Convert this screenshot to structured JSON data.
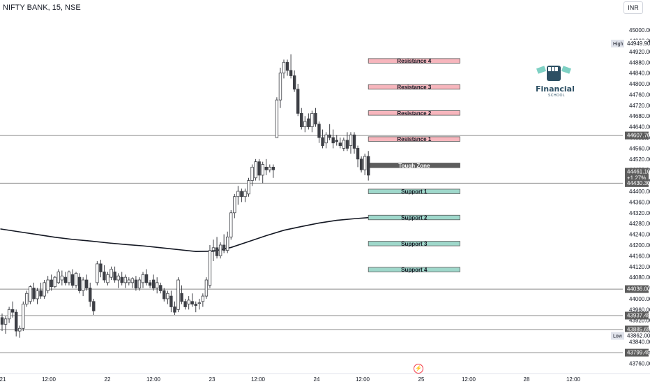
{
  "header": {
    "symbol": "NIFTY BANK, 15, NSE",
    "currency": "INR"
  },
  "logo": {
    "word": "Financial",
    "sub": "SCHOOL",
    "icon": "raised-fist-money-icon"
  },
  "colors": {
    "up_candle": "#ffffff",
    "down_candle": "#3d3f45",
    "resistance": "#f7b6bd",
    "support": "#9fd8cb",
    "tough_zone": "#5d5d5d",
    "ma_line": "#131722",
    "level_line": "#8a8a8a",
    "price_label": "#5d5d5d",
    "event_icon": "#f23645"
  },
  "chart_data": {
    "type": "candlestick",
    "symbol": "NIFTY BANK",
    "interval": "15",
    "exchange": "NSE",
    "ylim": [
      43740,
      45060
    ],
    "y_ticks": [
      45000,
      44960,
      44920,
      44880,
      44840,
      44800,
      44760,
      44720,
      44680,
      44640,
      44600,
      44560,
      44520,
      44480,
      44440,
      44400,
      44360,
      44320,
      44280,
      44240,
      44200,
      44160,
      44120,
      44080,
      44040,
      44000,
      43960,
      43920,
      43880,
      43840,
      43800,
      43760
    ],
    "x_tick_labels": [
      "21",
      "12:00",
      "22",
      "12:00",
      "23",
      "12:00",
      "24",
      "12:00",
      "25",
      "12:00",
      "28",
      "12:00"
    ],
    "candles_ohlc": [
      [
        43930,
        43945,
        43880,
        43905
      ],
      [
        43905,
        43935,
        43870,
        43925
      ],
      [
        43925,
        43970,
        43910,
        43960
      ],
      [
        43960,
        43990,
        43930,
        43950
      ],
      [
        43950,
        43960,
        43860,
        43880
      ],
      [
        43880,
        43900,
        43855,
        43890
      ],
      [
        43890,
        43990,
        43880,
        43980
      ],
      [
        43980,
        44030,
        43970,
        44020
      ],
      [
        43990,
        44050,
        43980,
        44045
      ],
      [
        44040,
        44060,
        43990,
        44000
      ],
      [
        44000,
        44040,
        43980,
        44030
      ],
      [
        44030,
        44060,
        44000,
        44010
      ],
      [
        44010,
        44070,
        44000,
        44060
      ],
      [
        44030,
        44085,
        44020,
        44070
      ],
      [
        44070,
        44090,
        44030,
        44045
      ],
      [
        44045,
        44085,
        44040,
        44080
      ],
      [
        44060,
        44110,
        44055,
        44100
      ],
      [
        44070,
        44105,
        44050,
        44085
      ],
      [
        44080,
        44100,
        44050,
        44060
      ],
      [
        44060,
        44105,
        44050,
        44100
      ],
      [
        44090,
        44110,
        44040,
        44050
      ],
      [
        44050,
        44100,
        44040,
        44095
      ],
      [
        44080,
        44095,
        44020,
        44030
      ],
      [
        44030,
        44080,
        44010,
        44070
      ],
      [
        44070,
        44090,
        44030,
        44040
      ],
      [
        44040,
        44060,
        43970,
        43990
      ],
      [
        43990,
        44000,
        43940,
        43955
      ],
      [
        44060,
        44140,
        44050,
        44130
      ],
      [
        44130,
        44145,
        44080,
        44100
      ],
      [
        44100,
        44125,
        44060,
        44070
      ],
      [
        44060,
        44100,
        44050,
        44090
      ],
      [
        44080,
        44120,
        44070,
        44110
      ],
      [
        44100,
        44120,
        44060,
        44070
      ],
      [
        44070,
        44095,
        44040,
        44085
      ],
      [
        44080,
        44100,
        44050,
        44060
      ],
      [
        44060,
        44090,
        44040,
        44080
      ],
      [
        44060,
        44080,
        44050,
        44070
      ],
      [
        44060,
        44080,
        44040,
        44075
      ],
      [
        44070,
        44085,
        44030,
        44040
      ],
      [
        44040,
        44080,
        44030,
        44070
      ],
      [
        44060,
        44100,
        44040,
        44090
      ],
      [
        44090,
        44110,
        44050,
        44060
      ],
      [
        44060,
        44070,
        44040,
        44050
      ],
      [
        44070,
        44090,
        44030,
        44040
      ],
      [
        44040,
        44080,
        44020,
        44060
      ],
      [
        44050,
        44060,
        44020,
        44030
      ],
      [
        44030,
        44040,
        43990,
        44000
      ],
      [
        44000,
        44030,
        43980,
        44020
      ],
      [
        44010,
        44030,
        43950,
        43970
      ],
      [
        43970,
        43990,
        43940,
        43950
      ],
      [
        43960,
        44080,
        43950,
        44070
      ],
      [
        44020,
        44050,
        43980,
        43990
      ],
      [
        43990,
        44000,
        43960,
        43970
      ],
      [
        43980,
        44010,
        43960,
        43995
      ],
      [
        43990,
        44020,
        43970,
        43980
      ],
      [
        43980,
        43990,
        43950,
        43975
      ],
      [
        43985,
        44000,
        43960,
        43985
      ],
      [
        43990,
        44020,
        43970,
        44010
      ],
      [
        44010,
        44080,
        44000,
        44070
      ],
      [
        44050,
        44200,
        44040,
        44180
      ],
      [
        44180,
        44220,
        44140,
        44190
      ],
      [
        44190,
        44230,
        44150,
        44160
      ],
      [
        44160,
        44210,
        44150,
        44200
      ],
      [
        44200,
        44240,
        44170,
        44180
      ],
      [
        44180,
        44250,
        44170,
        44230
      ],
      [
        44230,
        44330,
        44220,
        44320
      ],
      [
        44320,
        44390,
        44300,
        44380
      ],
      [
        44380,
        44420,
        44350,
        44400
      ],
      [
        44400,
        44410,
        44360,
        44380
      ],
      [
        44380,
        44410,
        44360,
        44400
      ],
      [
        44390,
        44450,
        44380,
        44440
      ],
      [
        44440,
        44500,
        44420,
        44490
      ],
      [
        44450,
        44520,
        44440,
        44510
      ],
      [
        44510,
        44520,
        44440,
        44460
      ],
      [
        44460,
        44510,
        44430,
        44500
      ],
      [
        44490,
        44520,
        44460,
        44480
      ],
      [
        44480,
        44500,
        44470,
        44490
      ],
      [
        44490,
        44500,
        44450,
        44480
      ],
      [
        44600,
        44750,
        44600,
        44740
      ],
      [
        44740,
        44860,
        44710,
        44840
      ],
      [
        44840,
        44890,
        44820,
        44880
      ],
      [
        44880,
        44890,
        44830,
        44850
      ],
      [
        44850,
        44910,
        44820,
        44830
      ],
      [
        44830,
        44850,
        44770,
        44780
      ],
      [
        44780,
        44800,
        44680,
        44690
      ],
      [
        44690,
        44710,
        44630,
        44640
      ],
      [
        44640,
        44680,
        44620,
        44660
      ],
      [
        44670,
        44690,
        44630,
        44640
      ],
      [
        44640,
        44700,
        44620,
        44690
      ],
      [
        44690,
        44710,
        44640,
        44650
      ],
      [
        44650,
        44660,
        44580,
        44600
      ],
      [
        44600,
        44630,
        44560,
        44570
      ],
      [
        44580,
        44620,
        44560,
        44610
      ],
      [
        44610,
        44650,
        44590,
        44600
      ],
      [
        44600,
        44630,
        44560,
        44580
      ],
      [
        44590,
        44610,
        44570,
        44585
      ],
      [
        44580,
        44600,
        44560,
        44570
      ],
      [
        44560,
        44600,
        44550,
        44590
      ],
      [
        44590,
        44620,
        44550,
        44560
      ],
      [
        44570,
        44620,
        44540,
        44610
      ],
      [
        44610,
        44620,
        44540,
        44560
      ],
      [
        44560,
        44570,
        44490,
        44520
      ],
      [
        44520,
        44530,
        44470,
        44480
      ],
      [
        44480,
        44540,
        44460,
        44530
      ],
      [
        44530,
        44550,
        44440,
        44460
      ]
    ],
    "moving_average": [
      [
        -0.5,
        44260
      ],
      [
        5,
        44249
      ],
      [
        10,
        44239
      ],
      [
        15,
        44229
      ],
      [
        20,
        44221
      ],
      [
        25,
        44215
      ],
      [
        30,
        44208
      ],
      [
        35,
        44202
      ],
      [
        40,
        44197
      ],
      [
        45,
        44190
      ],
      [
        50,
        44183
      ],
      [
        55,
        44176
      ],
      [
        60,
        44177
      ],
      [
        65,
        44191
      ],
      [
        70,
        44213
      ],
      [
        75,
        44235
      ],
      [
        80,
        44255
      ],
      [
        85,
        44269
      ],
      [
        90,
        44282
      ],
      [
        95,
        44292
      ],
      [
        100,
        44298
      ],
      [
        104,
        44302
      ]
    ],
    "horizontal_levels": [
      44607.7,
      44430.3,
      44036.0,
      43937.45,
      43885.65,
      43799.45
    ],
    "zones": [
      {
        "label": "Resistance 4",
        "kind": "resistance",
        "low": 44877,
        "high": 44894,
        "from_x": 104,
        "to_x": 130
      },
      {
        "label": "Resistance 3",
        "kind": "resistance",
        "low": 44780,
        "high": 44797,
        "from_x": 104,
        "to_x": 130
      },
      {
        "label": "Resistance 2",
        "kind": "resistance",
        "low": 44683,
        "high": 44700,
        "from_x": 104,
        "to_x": 130
      },
      {
        "label": "Resistance 1",
        "kind": "resistance",
        "low": 44586,
        "high": 44603,
        "from_x": 104,
        "to_x": 130
      },
      {
        "label": "Tough Zone",
        "kind": "tough",
        "low": 44488,
        "high": 44505,
        "from_x": 104,
        "to_x": 130
      },
      {
        "label": "Support 1",
        "kind": "support",
        "low": 44391,
        "high": 44408,
        "from_x": 104,
        "to_x": 130
      },
      {
        "label": "Support 2",
        "kind": "support",
        "low": 44294,
        "high": 44311,
        "from_x": 104,
        "to_x": 130
      },
      {
        "label": "Support 3",
        "kind": "support",
        "low": 44197,
        "high": 44214,
        "from_x": 104,
        "to_x": 130
      },
      {
        "label": "Support 4",
        "kind": "support",
        "low": 44100,
        "high": 44117,
        "from_x": 104,
        "to_x": 130
      }
    ],
    "price_labels": [
      {
        "text": "44949.90",
        "value": 44949.9,
        "tag": "High"
      },
      {
        "text": "44607.70",
        "value": 44607.7
      },
      {
        "text": "44461.10\n+1.27%",
        "value": 44461.1
      },
      {
        "text": "44430.30",
        "value": 44430.3
      },
      {
        "text": "44036.00",
        "value": 44036.0
      },
      {
        "text": "43937.45",
        "value": 43937.45
      },
      {
        "text": "43885.65",
        "value": 43885.65
      },
      {
        "text": "43862.00",
        "value": 43862.0,
        "tag": "Low"
      },
      {
        "text": "43799.45",
        "value": 43799.45
      }
    ]
  }
}
